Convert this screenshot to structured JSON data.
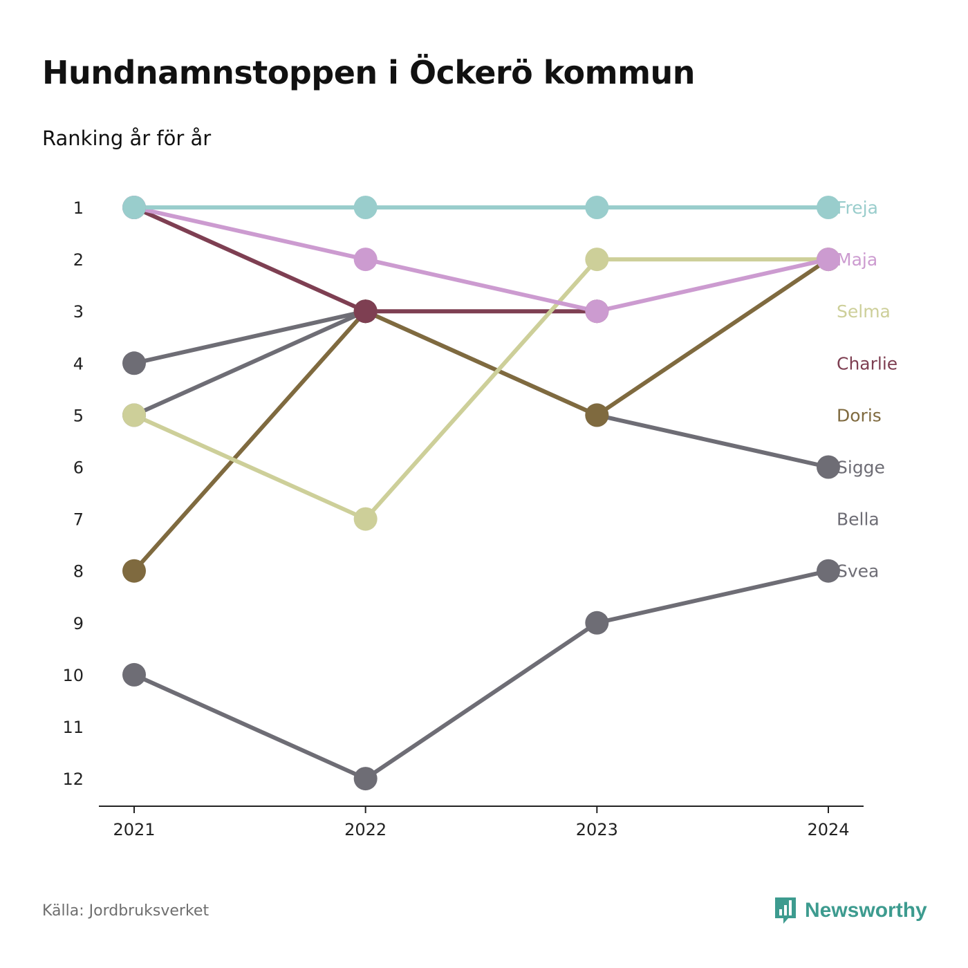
{
  "header": {
    "title": "Hundnamnstoppen i Öckerö kommun",
    "subtitle": "Ranking år för år"
  },
  "footer": {
    "source": "Källa: Jordbruksverket",
    "brand": "Newsworthy",
    "brand_icon": "bar-chart-speech-bubble-icon",
    "brand_color": "#3d9b8f"
  },
  "chart_data": {
    "type": "line",
    "title": "Hundnamnstoppen i Öckerö kommun",
    "subtitle": "Ranking år för år",
    "xlabel": "",
    "ylabel": "",
    "x": [
      "2021",
      "2022",
      "2023",
      "2024"
    ],
    "y_ticks": [
      1,
      2,
      3,
      4,
      5,
      6,
      7,
      8,
      9,
      10,
      11,
      12
    ],
    "ylim": [
      1,
      12
    ],
    "y_inverted": true,
    "grid": false,
    "legend": "right (labels at line ends)",
    "series": [
      {
        "name": "Svea",
        "color": "#6e6d75",
        "values": [
          10,
          12,
          9,
          8
        ]
      },
      {
        "name": "Bella",
        "color": "#6e6d75",
        "values": [
          4,
          3,
          null,
          null
        ]
      },
      {
        "name": "Sigge",
        "color": "#6e6d75",
        "values": [
          5,
          3,
          5,
          6
        ]
      },
      {
        "name": "Doris",
        "color": "#7f6a3f",
        "values": [
          8,
          3,
          5,
          2
        ]
      },
      {
        "name": "Charlie",
        "color": "#7e3f52",
        "values": [
          1,
          3,
          3,
          null
        ]
      },
      {
        "name": "Selma",
        "color": "#cdcf99",
        "values": [
          5,
          7,
          2,
          2
        ]
      },
      {
        "name": "Maja",
        "color": "#cc9bd0",
        "values": [
          1,
          2,
          3,
          2
        ]
      },
      {
        "name": "Freja",
        "color": "#99cdcc",
        "values": [
          1,
          1,
          1,
          1
        ]
      }
    ]
  }
}
